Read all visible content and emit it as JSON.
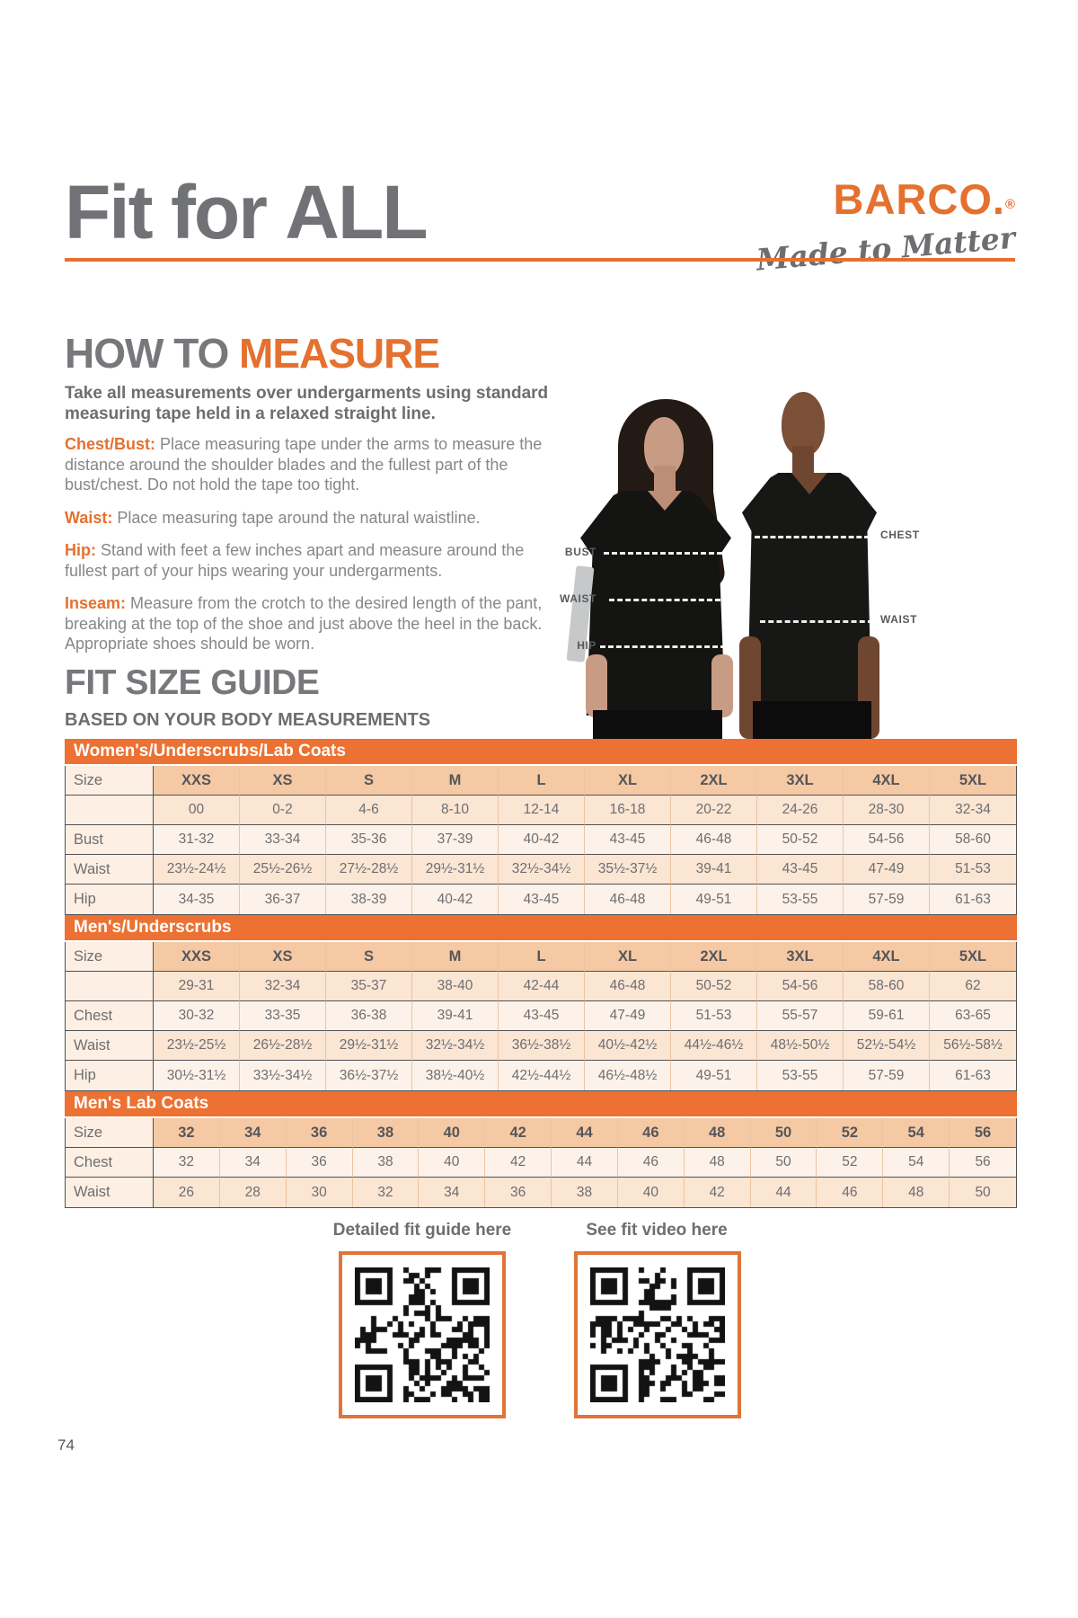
{
  "header": {
    "title_regular": "Fit for ",
    "title_bold": "ALL",
    "brand": "BARCO",
    "brand_suffix": ".",
    "brand_reg": "®",
    "tagline": "Made to Matter"
  },
  "how_to_measure": {
    "heading_gray": "HOW TO ",
    "heading_orange": "MEASURE",
    "intro": "Take all measurements over undergarments using standard measuring tape held in a relaxed straight line.",
    "items": [
      {
        "label": "Chest/Bust:",
        "text": "Place measuring tape under the arms to measure the distance around the shoulder blades and the fullest part of the bust/chest. Do not hold the tape too tight."
      },
      {
        "label": "Waist:",
        "text": "Place measuring tape around the natural waistline."
      },
      {
        "label": "Hip:",
        "text": "Stand with feet a few inches apart and measure around the fullest part of your hips wearing your undergarments."
      },
      {
        "label": "Inseam:",
        "text": "Measure from the crotch to the desired length of the pant, breaking at the top of the shoe and just above the heel in the back. Appropriate shoes should be worn."
      }
    ]
  },
  "figure_labels": {
    "bust": "BUST",
    "waist_woman": "WAIST",
    "hip": "HIP",
    "chest": "CHEST",
    "waist_man": "WAIST"
  },
  "fit_size_guide": {
    "heading": "FIT SIZE GUIDE",
    "subheading": "BASED ON YOUR BODY MEASUREMENTS"
  },
  "tables": [
    {
      "title": "Women's/Underscrubs/Lab Coats",
      "header": {
        "label": "Size",
        "cells": [
          "XXS",
          "XS",
          "S",
          "M",
          "L",
          "XL",
          "2XL",
          "3XL",
          "4XL",
          "5XL"
        ]
      },
      "rows": [
        {
          "label": "",
          "cells": [
            "00",
            "0-2",
            "4-6",
            "8-10",
            "12-14",
            "16-18",
            "20-22",
            "24-26",
            "28-30",
            "32-34"
          ]
        },
        {
          "label": "Bust",
          "cells": [
            "31-32",
            "33-34",
            "35-36",
            "37-39",
            "40-42",
            "43-45",
            "46-48",
            "50-52",
            "54-56",
            "58-60"
          ]
        },
        {
          "label": "Waist",
          "cells": [
            "23½-24½",
            "25½-26½",
            "27½-28½",
            "29½-31½",
            "32½-34½",
            "35½-37½",
            "39-41",
            "43-45",
            "47-49",
            "51-53"
          ]
        },
        {
          "label": "Hip",
          "cells": [
            "34-35",
            "36-37",
            "38-39",
            "40-42",
            "43-45",
            "46-48",
            "49-51",
            "53-55",
            "57-59",
            "61-63"
          ]
        }
      ]
    },
    {
      "title": "Men's/Underscrubs",
      "header": {
        "label": "Size",
        "cells": [
          "XXS",
          "XS",
          "S",
          "M",
          "L",
          "XL",
          "2XL",
          "3XL",
          "4XL",
          "5XL"
        ]
      },
      "rows": [
        {
          "label": "",
          "cells": [
            "29-31",
            "32-34",
            "35-37",
            "38-40",
            "42-44",
            "46-48",
            "50-52",
            "54-56",
            "58-60",
            "62"
          ]
        },
        {
          "label": "Chest",
          "cells": [
            "30-32",
            "33-35",
            "36-38",
            "39-41",
            "43-45",
            "47-49",
            "51-53",
            "55-57",
            "59-61",
            "63-65"
          ]
        },
        {
          "label": "Waist",
          "cells": [
            "23½-25½",
            "26½-28½",
            "29½-31½",
            "32½-34½",
            "36½-38½",
            "40½-42½",
            "44½-46½",
            "48½-50½",
            "52½-54½",
            "56½-58½"
          ]
        },
        {
          "label": "Hip",
          "cells": [
            "30½-31½",
            "33½-34½",
            "36½-37½",
            "38½-40½",
            "42½-44½",
            "46½-48½",
            "49-51",
            "53-55",
            "57-59",
            "61-63"
          ]
        }
      ]
    },
    {
      "title": "Men's Lab Coats",
      "header": {
        "label": "Size",
        "cells": [
          "32",
          "34",
          "36",
          "38",
          "40",
          "42",
          "44",
          "46",
          "48",
          "50",
          "52",
          "54",
          "56"
        ]
      },
      "rows": [
        {
          "label": "Chest",
          "cells": [
            "32",
            "34",
            "36",
            "38",
            "40",
            "42",
            "44",
            "46",
            "48",
            "50",
            "52",
            "54",
            "56"
          ]
        },
        {
          "label": "Waist",
          "cells": [
            "26",
            "28",
            "30",
            "32",
            "34",
            "36",
            "38",
            "40",
            "42",
            "44",
            "46",
            "48",
            "50"
          ]
        }
      ]
    }
  ],
  "qr": [
    {
      "label": "Detailed fit guide here"
    },
    {
      "label": "See fit video here"
    }
  ],
  "page": {
    "number": "74"
  },
  "colors": {
    "orange": "#e4712f",
    "band_orange": "#ec7132",
    "heading_gray": "#77787b",
    "body_gray": "#85878a",
    "header_cell_peach": "#f5c9a4",
    "row_peach": "#fbe5d3",
    "row_light": "#fdf2e9"
  }
}
